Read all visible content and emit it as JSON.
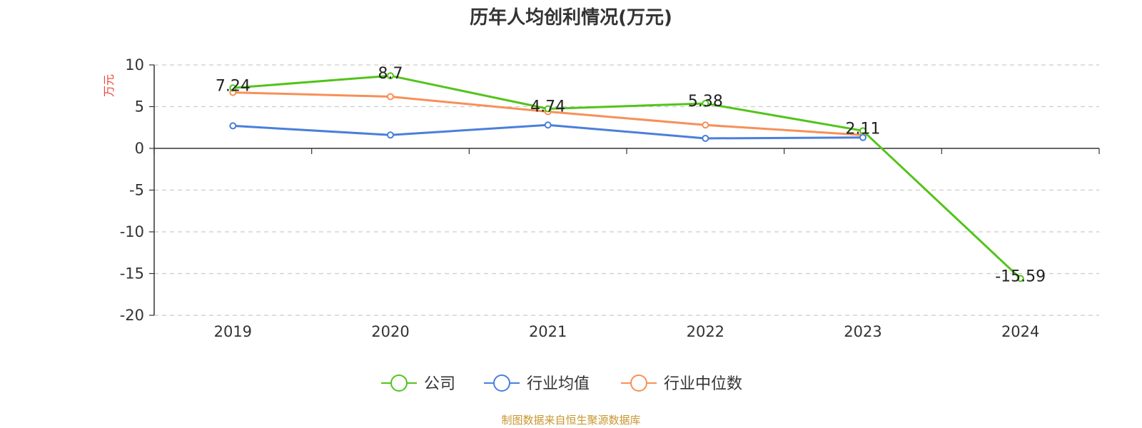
{
  "chart_data": {
    "type": "line",
    "title": "历年人均创利情况(万元)",
    "ylabel": "万元",
    "xlabel": "",
    "categories": [
      "2019",
      "2020",
      "2021",
      "2022",
      "2023",
      "2024"
    ],
    "ylim": [
      -20,
      10
    ],
    "yticks": [
      "10",
      "5",
      "0",
      "-5",
      "-10",
      "-15",
      "-20"
    ],
    "grid": true,
    "legend_position": "bottom",
    "series": [
      {
        "name": "公司",
        "color": "#52c41a",
        "values": [
          7.24,
          8.7,
          4.74,
          5.38,
          2.11,
          -15.59
        ],
        "labels": [
          "7.24",
          "8.7",
          "4.74",
          "5.38",
          "2.11",
          "-15.59"
        ]
      },
      {
        "name": "行业均值",
        "color": "#4a7fdc",
        "values": [
          2.7,
          1.6,
          2.8,
          1.2,
          1.3,
          null
        ]
      },
      {
        "name": "行业中位数",
        "color": "#f79058",
        "values": [
          6.7,
          6.2,
          4.4,
          2.8,
          1.6,
          null
        ]
      }
    ]
  },
  "footer": {
    "source": "制图数据来自恒生聚源数据库"
  }
}
